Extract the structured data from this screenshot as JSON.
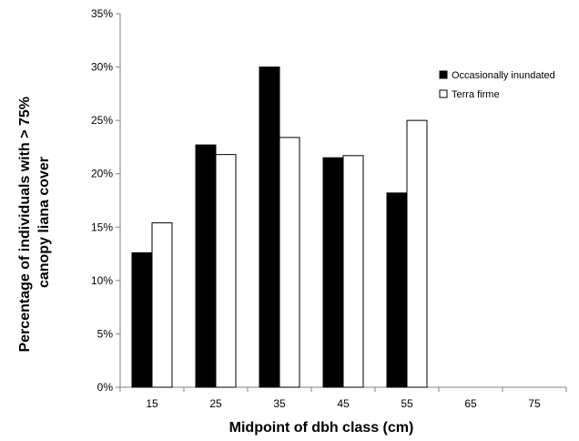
{
  "chart_data": {
    "type": "bar",
    "categories": [
      "15",
      "25",
      "35",
      "45",
      "55",
      "65",
      "75"
    ],
    "series": [
      {
        "name": "Occasionally inundated",
        "values": [
          12.6,
          22.7,
          30.0,
          21.5,
          18.2,
          null,
          null
        ],
        "color": "#000000"
      },
      {
        "name": "Terra firme",
        "values": [
          15.4,
          21.8,
          23.4,
          21.7,
          25.0,
          null,
          null
        ],
        "color": "#ffffff"
      }
    ],
    "xlabel": "Midpoint of dbh class (cm)",
    "ylabel_lines": [
      "Percentage of individuals with > 75%",
      "canopy liana cover"
    ],
    "ylim": [
      0,
      35
    ],
    "yticks": [
      0,
      5,
      10,
      15,
      20,
      25,
      30,
      35
    ],
    "ytick_suffix": "%",
    "grid": false,
    "legend_position": "right"
  }
}
